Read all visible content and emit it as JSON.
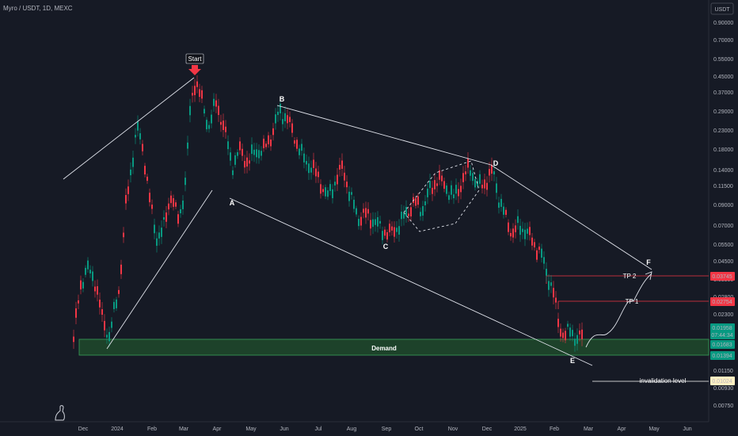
{
  "header": {
    "title": "Myro / USDT, 1D, MEXC",
    "currency_button": "USDT"
  },
  "chart_data": {
    "type": "candlestick",
    "x_tick_labels": [
      "Dec",
      "2024",
      "Feb",
      "Mar",
      "Apr",
      "May",
      "Jun",
      "Jul",
      "Aug",
      "Sep",
      "Oct",
      "Nov",
      "Dec",
      "2025",
      "Feb",
      "Mar",
      "Apr",
      "May",
      "Jun"
    ],
    "y_tick_labels": [
      "0.90000",
      "0.70000",
      "0.55000",
      "0.45000",
      "0.37000",
      "0.29000",
      "0.23000",
      "0.18000",
      "0.14000",
      "0.11500",
      "0.09000",
      "0.07000",
      "0.05500",
      "0.04500",
      "0.03500",
      "0.02800",
      "0.02300",
      "0.01800",
      "0.01150",
      "0.00930",
      "0.00750"
    ],
    "y_scale": "log",
    "price_badges": [
      {
        "value": "0.03745",
        "color": "#f23645"
      },
      {
        "value": "0.02754",
        "color": "#f23645"
      },
      {
        "value": "0.01958",
        "sub": "07:44:34",
        "color": "#089981"
      },
      {
        "value": "0.01683",
        "color": "#089981"
      },
      {
        "value": "0.01394",
        "color": "#089981"
      },
      {
        "value": "0.01024",
        "color": "#fff0c2"
      }
    ],
    "wave_labels": [
      "A",
      "B",
      "C",
      "D",
      "E",
      "F"
    ],
    "annotations": {
      "start": "Start",
      "demand": "Demand",
      "tp1": "TP 1",
      "tp2": "TP 2",
      "invalidation": "invalidation level"
    },
    "zones": {
      "demand": {
        "low": 0.01394,
        "high": 0.01683
      },
      "tp1": 0.02754,
      "tp2": 0.03745,
      "invalidation": 0.01024
    },
    "colors": {
      "up": "#089981",
      "down": "#f23645",
      "background": "#161a25",
      "zone": "#1e4a2c"
    },
    "grid": false
  }
}
